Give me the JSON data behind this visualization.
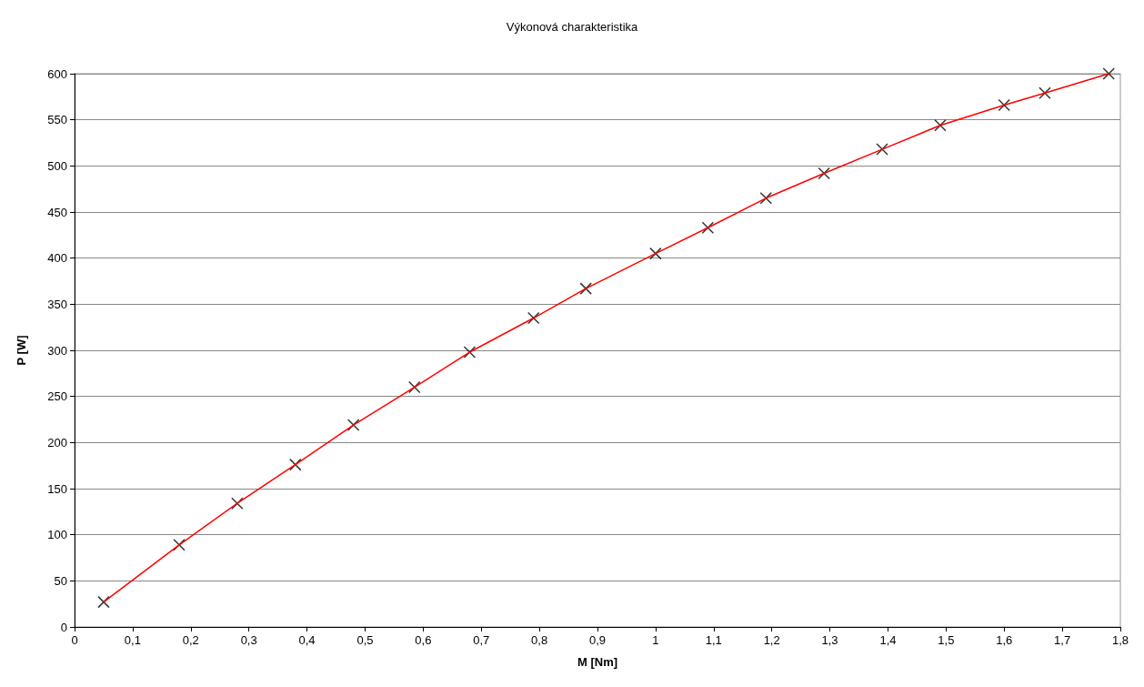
{
  "chart_data": {
    "type": "scatter",
    "title": "Výkonová charakteristika",
    "xlabel": "M [Nm]",
    "ylabel": "P [W]",
    "xlim": [
      0,
      1.8
    ],
    "xticks": [
      0,
      {
        "value": 0.1,
        "label": "0,1"
      },
      {
        "value": 0.2,
        "label": "0,2"
      },
      {
        "value": 0.3,
        "label": "0,3"
      },
      {
        "value": 0.4,
        "label": "0,4"
      },
      {
        "value": 0.5,
        "label": "0,5"
      },
      {
        "value": 0.6,
        "label": "0,6"
      },
      {
        "value": 0.7,
        "label": "0,7"
      },
      {
        "value": 0.8,
        "label": "0,8"
      },
      {
        "value": 0.9,
        "label": "0,9"
      },
      1,
      {
        "value": 1.1,
        "label": "1,1"
      },
      {
        "value": 1.2,
        "label": "1,2"
      },
      {
        "value": 1.3,
        "label": "1,3"
      },
      {
        "value": 1.4,
        "label": "1,4"
      },
      {
        "value": 1.5,
        "label": "1,5"
      },
      {
        "value": 1.6,
        "label": "1,6"
      },
      {
        "value": 1.7,
        "label": "1,7"
      },
      {
        "value": 1.8,
        "label": "1,8"
      }
    ],
    "ylim": [
      0,
      600
    ],
    "yticks": [
      0,
      50,
      100,
      150,
      200,
      250,
      300,
      350,
      400,
      450,
      500,
      550,
      600
    ],
    "grid": "y",
    "x": [
      0.05,
      0.18,
      0.28,
      0.38,
      0.48,
      0.585,
      0.68,
      0.79,
      0.88,
      1.0,
      1.09,
      1.19,
      1.29,
      1.39,
      1.49,
      1.6,
      1.67,
      1.78
    ],
    "series": [
      {
        "type": "line",
        "color": "#ff0000",
        "marker": "none",
        "line_style": "solid",
        "values": [
          27,
          89,
          134,
          176,
          219,
          260,
          298,
          335,
          367,
          405,
          433,
          465,
          492,
          518,
          544,
          566,
          579,
          600
        ]
      },
      {
        "color": "#000000",
        "marker": "cross",
        "values": [
          27,
          89,
          134,
          176,
          219,
          260,
          298,
          335,
          367,
          405,
          433,
          465,
          492,
          518,
          544,
          566,
          579,
          600
        ]
      }
    ]
  }
}
